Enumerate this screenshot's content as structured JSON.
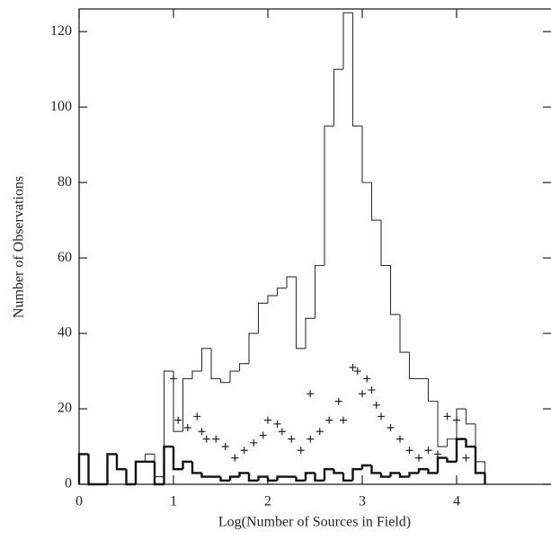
{
  "chart_data": {
    "type": "histogram",
    "x_label": "Log(Number of Sources in Field)",
    "y_label": "Number of Observations",
    "xlim": [
      0,
      5
    ],
    "ylim": [
      0,
      126
    ],
    "xticks": [
      0,
      1,
      2,
      3,
      4
    ],
    "yticks": [
      0,
      20,
      40,
      60,
      80,
      100,
      120
    ],
    "bins": [
      0,
      0.1,
      0.2,
      0.3,
      0.4,
      0.5,
      0.6,
      0.7,
      0.8,
      0.9,
      1.0,
      1.1,
      1.2,
      1.3,
      1.4,
      1.5,
      1.6,
      1.7,
      1.8,
      1.9,
      2.0,
      2.1,
      2.2,
      2.3,
      2.4,
      2.5,
      2.6,
      2.7,
      2.8,
      2.9,
      3.0,
      3.1,
      3.2,
      3.3,
      3.4,
      3.5,
      3.6,
      3.7,
      3.8,
      3.9,
      4.0,
      4.1,
      4.2,
      4.3
    ],
    "series": [
      {
        "color": "#333333",
        "line_width": 1.1,
        "values": [
          8,
          0,
          0,
          8,
          4,
          0,
          6,
          8,
          2,
          30,
          14,
          28,
          30,
          36,
          28,
          27,
          30,
          32,
          40,
          48,
          50,
          52,
          55,
          36,
          44,
          58,
          95,
          110,
          125,
          95,
          80,
          70,
          58,
          45,
          35,
          28,
          28,
          22,
          10,
          12,
          20,
          16,
          6
        ]
      },
      {
        "color": "#111111",
        "line_width": 2.4,
        "values": [
          8,
          0,
          0,
          8,
          4,
          0,
          6,
          6,
          0,
          10,
          4,
          6,
          3,
          2,
          2,
          1,
          2,
          3,
          1,
          2,
          1,
          2,
          2,
          1,
          3,
          1,
          4,
          3,
          1,
          4,
          5,
          3,
          2,
          3,
          2,
          3,
          4,
          3,
          7,
          6,
          12,
          10,
          3
        ]
      }
    ],
    "points": {
      "color": "#222222",
      "x": [
        1.0,
        1.05,
        1.15,
        1.25,
        1.3,
        1.35,
        1.45,
        1.55,
        1.65,
        1.75,
        1.85,
        1.95,
        2.0,
        2.1,
        2.15,
        2.25,
        2.35,
        2.45,
        2.45,
        2.55,
        2.65,
        2.75,
        2.8,
        2.9,
        2.95,
        3.0,
        3.05,
        3.1,
        3.15,
        3.2,
        3.3,
        3.4,
        3.5,
        3.6,
        3.7,
        3.8,
        3.9,
        4.0,
        4.1
      ],
      "y": [
        28,
        17,
        15,
        18,
        14,
        12,
        12,
        10,
        7,
        9,
        11,
        13,
        17,
        16,
        14,
        12,
        9,
        24,
        12,
        14,
        17,
        22,
        17,
        31,
        30,
        24,
        28,
        25,
        21,
        18,
        15,
        12,
        9,
        7,
        9,
        8,
        18,
        17,
        7
      ]
    }
  }
}
